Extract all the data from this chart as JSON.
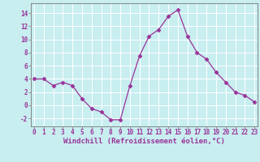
{
  "x": [
    0,
    1,
    2,
    3,
    4,
    5,
    6,
    7,
    8,
    9,
    10,
    11,
    12,
    13,
    14,
    15,
    16,
    17,
    18,
    19,
    20,
    21,
    22,
    23
  ],
  "y": [
    4,
    4,
    3,
    3.5,
    3,
    1,
    -0.5,
    -1,
    -2.2,
    -2.2,
    3,
    7.5,
    10.5,
    11.5,
    13.5,
    14.5,
    10.5,
    8,
    7,
    5,
    3.5,
    2,
    1.5,
    0.5
  ],
  "line_color": "#993399",
  "marker": "D",
  "marker_size": 2.5,
  "bg_color": "#c8eef0",
  "grid_color": "#aadddd",
  "xlabel": "Windchill (Refroidissement éolien,°C)",
  "xtick_labels": [
    "0",
    "1",
    "2",
    "3",
    "4",
    "5",
    "6",
    "7",
    "8",
    "9",
    "1011121314151617181920212223"
  ],
  "xticks_pos": [
    0,
    1,
    2,
    3,
    4,
    5,
    6,
    7,
    8,
    9,
    10
  ],
  "yticks": [
    -2,
    0,
    2,
    4,
    6,
    8,
    10,
    12,
    14
  ],
  "ylim": [
    -3.2,
    15.5
  ],
  "xlim": [
    -0.3,
    23.3
  ],
  "tick_fontsize": 5.5,
  "xlabel_fontsize": 6.5,
  "spine_color": "#777777"
}
